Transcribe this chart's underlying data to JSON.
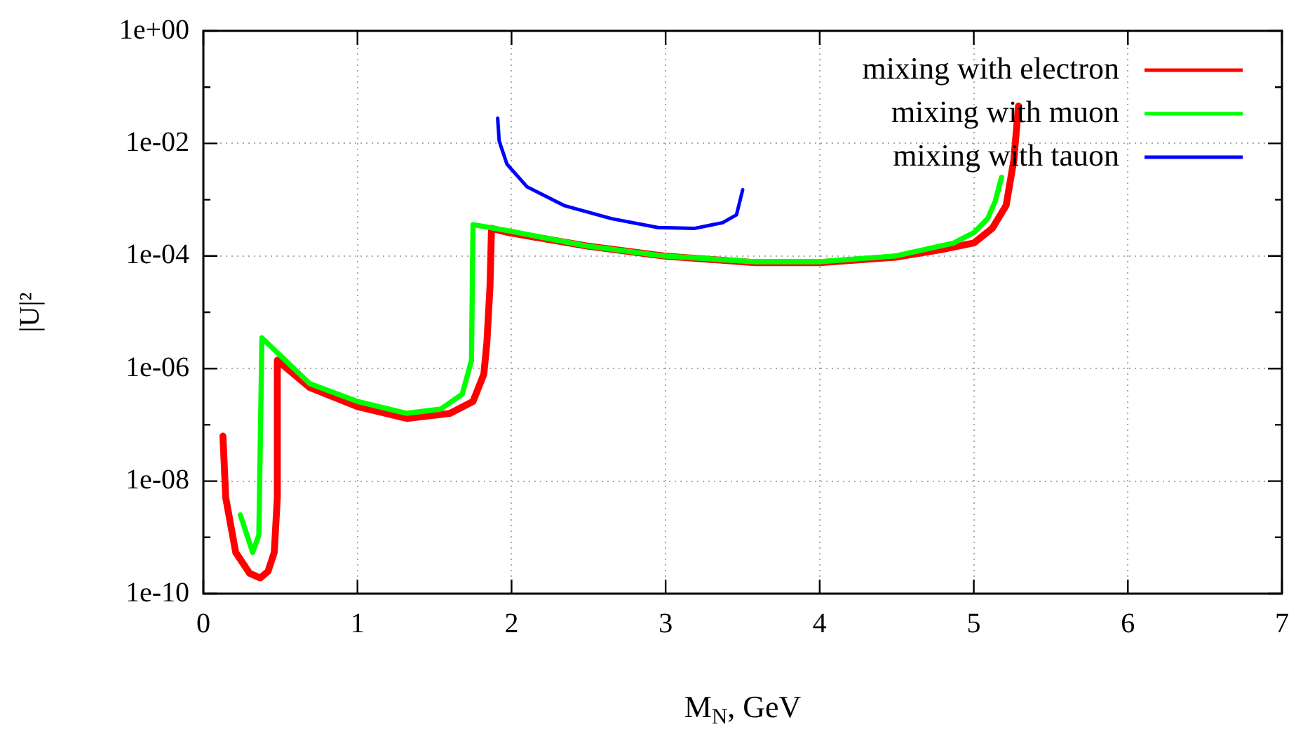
{
  "chart_data": {
    "type": "line",
    "xlabel": "M$_{N}$, GeV",
    "ylabel": "|U|²",
    "log": "y",
    "grid": true,
    "legend": "top right",
    "xlim": [
      0,
      7
    ],
    "xticks": [
      0,
      1,
      2,
      3,
      4,
      5,
      6,
      7
    ],
    "ylim": [
      1e-10,
      1
    ],
    "yticks": [
      {
        "value": 1e-10,
        "label": "1e-10"
      },
      {
        "value": 1e-09,
        "label": null
      },
      {
        "value": 1e-08,
        "label": "1e-08"
      },
      {
        "value": 1e-07,
        "label": null
      },
      {
        "value": 1e-06,
        "label": "1e-06"
      },
      {
        "value": 1e-05,
        "label": null
      },
      {
        "value": 0.0001,
        "label": "1e-04"
      },
      {
        "value": 0.001,
        "label": null
      },
      {
        "value": 0.01,
        "label": "1e-02"
      },
      {
        "value": 0.1,
        "label": null
      },
      {
        "value": 1,
        "label": "1e+00"
      }
    ],
    "series": [
      {
        "name": "mixing with electron",
        "color": "#ff0000",
        "x": [
          0.127,
          0.145,
          0.21,
          0.3,
          0.37,
          0.42,
          0.46,
          0.48,
          0.48,
          0.69,
          1.0,
          1.32,
          1.6,
          1.75,
          1.82,
          1.84,
          1.86,
          1.87,
          1.98,
          2.49,
          2.99,
          3.58,
          4.0,
          4.49,
          4.79,
          5.0,
          5.12,
          5.21,
          5.26,
          5.29
        ],
        "values": [
          6.3e-08,
          5.1e-09,
          5.4e-10,
          2.3e-10,
          1.9e-10,
          2.5e-10,
          5.4e-10,
          5.1e-09,
          1.4e-06,
          4.6e-07,
          2.1e-07,
          1.3e-07,
          1.6e-07,
          2.6e-07,
          7.9e-07,
          2.9e-06,
          2.8e-05,
          0.00031,
          0.00026,
          0.00015,
          0.0001,
          7.6e-05,
          7.6e-05,
          9.5e-05,
          0.00013,
          0.00017,
          0.00031,
          0.00079,
          0.0051,
          0.046
        ]
      },
      {
        "name": "mixing with muon",
        "color": "#00ff00",
        "x": [
          0.24,
          0.32,
          0.36,
          0.38,
          0.69,
          1.0,
          1.32,
          1.54,
          1.68,
          1.74,
          1.75,
          1.98,
          2.49,
          2.99,
          3.58,
          4.0,
          4.49,
          4.87,
          5.0,
          5.09,
          5.14,
          5.18
        ],
        "values": [
          2.5e-09,
          5.4e-10,
          1.1e-09,
          3.5e-06,
          5.4e-07,
          2.6e-07,
          1.6e-07,
          1.9e-07,
          3.5e-07,
          1.4e-06,
          0.00036,
          0.00028,
          0.00015,
          0.0001,
          7.9e-05,
          7.9e-05,
          0.0001,
          0.00017,
          0.00026,
          0.00046,
          0.00095,
          0.0025
        ]
      },
      {
        "name": "mixing with tauon",
        "color": "#0000ff",
        "x": [
          1.91,
          1.92,
          1.97,
          2.1,
          2.34,
          2.65,
          2.95,
          3.19,
          3.37,
          3.46,
          3.5
        ],
        "values": [
          0.028,
          0.011,
          0.0043,
          0.0017,
          0.00079,
          0.00046,
          0.00032,
          0.00031,
          0.00039,
          0.00054,
          0.0015
        ]
      }
    ]
  }
}
